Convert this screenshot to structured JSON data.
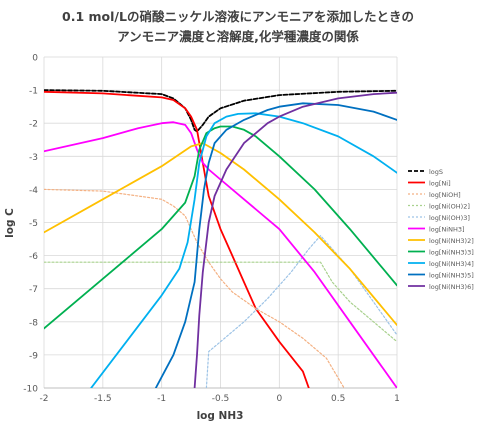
{
  "chart_data": {
    "type": "line",
    "title": "0.1 mol/Lの硝酸ニッケル溶液にアンモニアを添加したときの",
    "subtitle": "アンモニア濃度と溶解度,化学種濃度の関係",
    "xlabel": "log NH3",
    "ylabel": "log C",
    "xlim": [
      -2,
      1
    ],
    "ylim": [
      -10,
      0
    ],
    "x_ticks": [
      "-2",
      "-1.5",
      "-1",
      "-0.5",
      "0",
      "0.5",
      "1"
    ],
    "y_ticks": [
      "0",
      "-1",
      "-2",
      "-3",
      "-4",
      "-5",
      "-6",
      "-7",
      "-8",
      "-9",
      "-10"
    ],
    "grid": true,
    "legend_position": "right",
    "series": [
      {
        "name": "logS",
        "color": "#000000",
        "dash": "4,2",
        "width": 1.8,
        "x": [
          -2,
          -1.5,
          -1,
          -0.9,
          -0.8,
          -0.75,
          -0.72,
          -0.7,
          -0.65,
          -0.6,
          -0.5,
          -0.3,
          0,
          0.5,
          1
        ],
        "y": [
          -1.0,
          -1.02,
          -1.12,
          -1.25,
          -1.55,
          -1.9,
          -2.2,
          -2.25,
          -2.05,
          -1.8,
          -1.55,
          -1.32,
          -1.15,
          -1.05,
          -1.02
        ]
      },
      {
        "name": "log[Ni]",
        "color": "#ff0000",
        "dash": "",
        "width": 1.8,
        "x": [
          -2,
          -1.5,
          -1,
          -0.9,
          -0.8,
          -0.75,
          -0.7,
          -0.65,
          -0.6,
          -0.5,
          -0.4,
          -0.3,
          -0.2,
          0,
          0.2,
          0.25
        ],
        "y": [
          -1.05,
          -1.1,
          -1.22,
          -1.3,
          -1.55,
          -1.8,
          -2.2,
          -3.2,
          -4.2,
          -5.2,
          -6.0,
          -6.8,
          -7.6,
          -8.6,
          -9.5,
          -10
        ]
      },
      {
        "name": "log[NiOH]",
        "color": "#f4b183",
        "dash": "2,2",
        "width": 1.2,
        "x": [
          -2,
          -1.5,
          -1,
          -0.9,
          -0.8,
          -0.7,
          -0.6,
          -0.5,
          -0.4,
          -0.2,
          0,
          0.2,
          0.4,
          0.55
        ],
        "y": [
          -4.0,
          -4.05,
          -4.3,
          -4.5,
          -4.8,
          -5.6,
          -6.2,
          -6.7,
          -7.1,
          -7.6,
          -8.0,
          -8.5,
          -9.1,
          -10
        ]
      },
      {
        "name": "log[Ni(OH)2]",
        "color": "#a9d18e",
        "dash": "2,2",
        "width": 1.2,
        "x": [
          -2,
          -1,
          -0.5,
          0,
          0.35,
          0.45,
          0.6,
          0.8,
          1
        ],
        "y": [
          -6.2,
          -6.2,
          -6.2,
          -6.2,
          -6.2,
          -6.8,
          -7.4,
          -8.0,
          -8.6
        ]
      },
      {
        "name": "log[Ni(OH)3]",
        "color": "#9dc3e6",
        "dash": "2,2",
        "width": 1.2,
        "x": [
          -0.62,
          -0.6,
          -0.5,
          -0.3,
          -0.1,
          0.1,
          0.25,
          0.35,
          0.6,
          0.8,
          1
        ],
        "y": [
          -10,
          -8.9,
          -8.6,
          -8.0,
          -7.3,
          -6.5,
          -5.8,
          -5.4,
          -6.4,
          -7.4,
          -8.4
        ]
      },
      {
        "name": "log[NiNH3]",
        "color": "#ff00ff",
        "dash": "",
        "width": 1.8,
        "x": [
          -2,
          -1.5,
          -1.2,
          -1,
          -0.9,
          -0.8,
          -0.75,
          -0.7,
          -0.65,
          -0.6,
          -0.5,
          -0.3,
          0,
          0.3,
          0.6,
          0.9,
          1
        ],
        "y": [
          -2.85,
          -2.45,
          -2.15,
          -2.0,
          -1.97,
          -2.05,
          -2.3,
          -2.8,
          -3.2,
          -3.4,
          -3.7,
          -4.3,
          -5.2,
          -6.5,
          -8.0,
          -9.5,
          -10
        ]
      },
      {
        "name": "log[Ni(NH3)2]",
        "color": "#ffc000",
        "dash": "",
        "width": 1.8,
        "x": [
          -2,
          -1.5,
          -1,
          -0.75,
          -0.7,
          -0.65,
          -0.6,
          -0.5,
          -0.3,
          0,
          0.3,
          0.6,
          1
        ],
        "y": [
          -5.3,
          -4.3,
          -3.3,
          -2.7,
          -2.65,
          -2.6,
          -2.7,
          -2.9,
          -3.4,
          -4.3,
          -5.3,
          -6.4,
          -8.1
        ]
      },
      {
        "name": "log[Ni(NH3)3]",
        "color": "#00b050",
        "dash": "",
        "width": 1.8,
        "x": [
          -2,
          -1.5,
          -1,
          -0.8,
          -0.72,
          -0.68,
          -0.62,
          -0.55,
          -0.5,
          -0.4,
          -0.3,
          -0.2,
          0,
          0.3,
          0.6,
          1
        ],
        "y": [
          -8.2,
          -6.7,
          -5.2,
          -4.4,
          -3.6,
          -2.8,
          -2.3,
          -2.15,
          -2.1,
          -2.1,
          -2.2,
          -2.4,
          -3.0,
          -4.0,
          -5.2,
          -6.9
        ]
      },
      {
        "name": "log[Ni(NH3)4]",
        "color": "#00b0f0",
        "dash": "",
        "width": 1.8,
        "x": [
          -1.6,
          -1.3,
          -1,
          -0.85,
          -0.78,
          -0.72,
          -0.68,
          -0.62,
          -0.55,
          -0.45,
          -0.35,
          -0.2,
          0,
          0.2,
          0.5,
          0.8,
          1
        ],
        "y": [
          -10,
          -8.6,
          -7.2,
          -6.4,
          -5.6,
          -4.3,
          -3.2,
          -2.4,
          -2.0,
          -1.8,
          -1.72,
          -1.7,
          -1.8,
          -2.0,
          -2.4,
          -3.0,
          -3.5
        ]
      },
      {
        "name": "log[Ni(NH3)5]",
        "color": "#0070c0",
        "dash": "",
        "width": 1.8,
        "x": [
          -1.05,
          -0.9,
          -0.8,
          -0.72,
          -0.68,
          -0.64,
          -0.6,
          -0.55,
          -0.45,
          -0.3,
          -0.1,
          0,
          0.2,
          0.5,
          0.8,
          1
        ],
        "y": [
          -10,
          -9.0,
          -8.0,
          -6.8,
          -5.2,
          -4.0,
          -3.2,
          -2.6,
          -2.2,
          -1.9,
          -1.6,
          -1.5,
          -1.4,
          -1.45,
          -1.65,
          -1.9
        ]
      },
      {
        "name": "log[Ni(NH3)6]",
        "color": "#7030a0",
        "dash": "",
        "width": 1.8,
        "x": [
          -0.72,
          -0.7,
          -0.68,
          -0.65,
          -0.6,
          -0.55,
          -0.45,
          -0.3,
          -0.1,
          0,
          0.2,
          0.5,
          0.8,
          1
        ],
        "y": [
          -10,
          -9.0,
          -7.8,
          -6.5,
          -5.0,
          -4.2,
          -3.4,
          -2.6,
          -2.0,
          -1.8,
          -1.5,
          -1.25,
          -1.12,
          -1.08
        ]
      }
    ]
  }
}
